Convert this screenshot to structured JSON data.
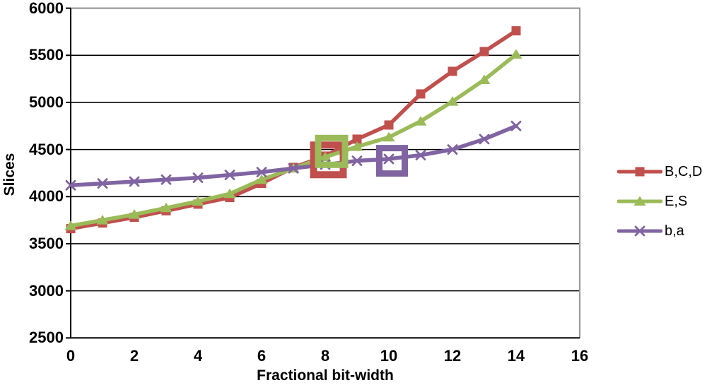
{
  "chart_data": {
    "type": "line",
    "title": "",
    "xlabel": "Fractional bit-width",
    "ylabel": "Slices",
    "xlim": [
      0,
      16
    ],
    "ylim": [
      2500,
      6000
    ],
    "x_ticks": [
      0,
      2,
      4,
      6,
      8,
      10,
      12,
      14,
      16
    ],
    "y_ticks": [
      2500,
      3000,
      3500,
      4000,
      4500,
      5000,
      5500,
      6000
    ],
    "grid": "horizontal",
    "legend_position": "right",
    "x": [
      0,
      1,
      2,
      3,
      4,
      5,
      6,
      7,
      8,
      9,
      10,
      11,
      12,
      13,
      14
    ],
    "series": [
      {
        "name": "B,C,D",
        "color": "#C0504D",
        "marker": "square",
        "values": [
          3660,
          3720,
          3780,
          3850,
          3920,
          3990,
          4140,
          4310,
          4430,
          4610,
          4760,
          5090,
          5330,
          5540,
          5760
        ]
      },
      {
        "name": "E,S",
        "color": "#9BBB59",
        "marker": "triangle",
        "values": [
          3690,
          3750,
          3810,
          3880,
          3950,
          4030,
          4180,
          4300,
          4420,
          4530,
          4630,
          4800,
          5010,
          5240,
          5510
        ]
      },
      {
        "name": "b,a",
        "color": "#8064A2",
        "marker": "x",
        "values": [
          4120,
          4140,
          4160,
          4180,
          4200,
          4230,
          4260,
          4300,
          4340,
          4380,
          4400,
          4440,
          4500,
          4610,
          4750
        ]
      }
    ],
    "annotations": [
      {
        "shape": "open-square",
        "series": "B,C,D",
        "x": 8.1,
        "y": 4390,
        "size": 52,
        "border": 10,
        "color": "#C0504D"
      },
      {
        "shape": "open-square",
        "series": "E,S",
        "x": 8.2,
        "y": 4480,
        "size": 47,
        "border": 9,
        "color": "#9BBB59"
      },
      {
        "shape": "open-square",
        "series": "b,a",
        "x": 10.1,
        "y": 4380,
        "size": 45,
        "border": 9,
        "color": "#8064A2"
      }
    ],
    "colors": {
      "gridline": "#000000",
      "plot_border": "#999999",
      "axis": "#000000",
      "text": "#000000",
      "background": "#FFFFFF"
    }
  },
  "legend": {
    "items": [
      {
        "label": "B,C,D"
      },
      {
        "label": "E,S"
      },
      {
        "label": "b,a"
      }
    ]
  }
}
